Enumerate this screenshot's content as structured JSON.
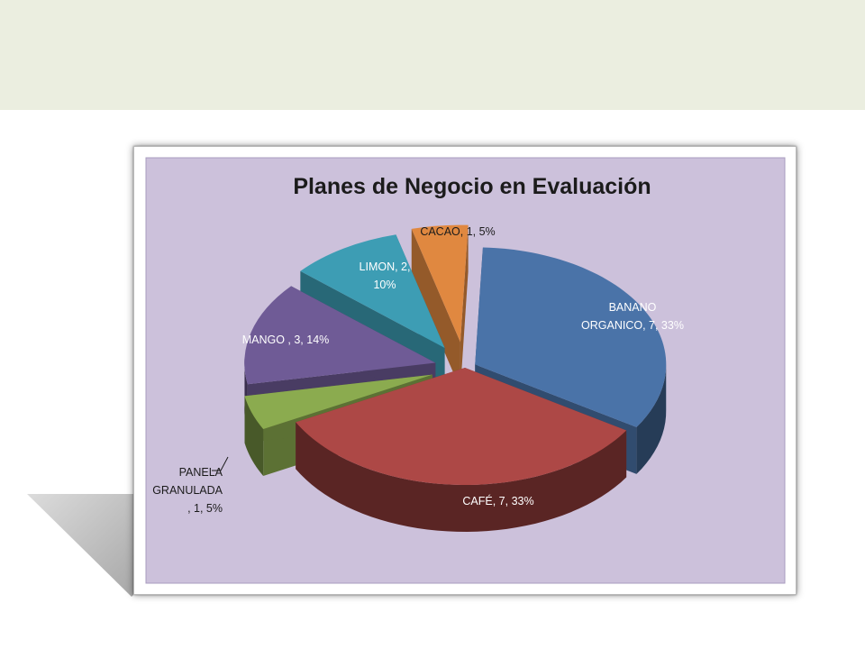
{
  "chart_data": {
    "type": "pie",
    "title": "Planes de Negocio en Evaluación",
    "slices": [
      {
        "name": "BANANO ORGANICO",
        "value": 7,
        "percent": "33%",
        "label_lines": [
          "BANANO",
          "ORGANICO, 7, 33%"
        ],
        "color": "#4a73a8"
      },
      {
        "name": "CAFÉ",
        "value": 7,
        "percent": "33%",
        "label_lines": [
          "CAFÉ, 7, 33%"
        ],
        "color": "#ad4846"
      },
      {
        "name": "PANELA GRANULADA",
        "value": 1,
        "percent": "5%",
        "label_lines": [
          "PANELA",
          "GRANULADA",
          ", 1, 5%"
        ],
        "color": "#8bab4f"
      },
      {
        "name": "MANGO",
        "value": 3,
        "percent": "14%",
        "label_lines": [
          "MANGO  , 3, 14%"
        ],
        "color": "#6f5b96"
      },
      {
        "name": "LIMON",
        "value": 2,
        "percent": "10%",
        "label_lines": [
          "LIMON, 2,",
          "10%"
        ],
        "color": "#3d9db4"
      },
      {
        "name": "CACAO",
        "value": 1,
        "percent": "5%",
        "label_lines": [
          "CACAO,  1, 5%"
        ],
        "color": "#e08840"
      }
    ],
    "plot_background": "#ccc1db"
  }
}
